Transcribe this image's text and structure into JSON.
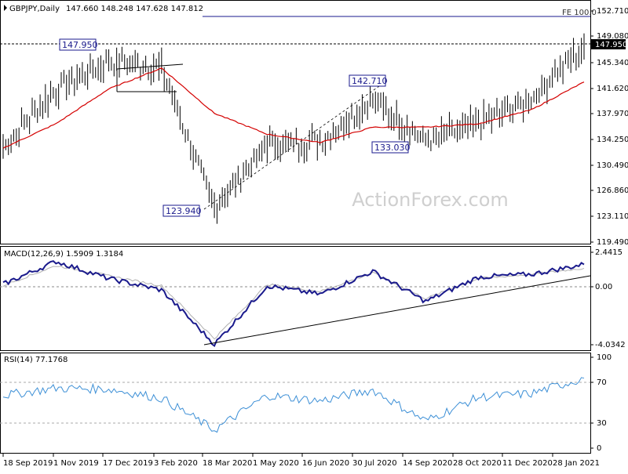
{
  "main": {
    "symbol": "GBPJPY,Daily",
    "ohlc": "147.660 148.248 147.628 147.812",
    "watermark": "ActionForex.com",
    "fe_label": "FE 100.0",
    "current_price_label": "147.950",
    "y_ticks": [
      "152.710",
      "149.080",
      "145.340",
      "141.620",
      "137.970",
      "134.250",
      "130.490",
      "126.860",
      "123.110",
      "119.490"
    ],
    "annotations": [
      "147.950",
      "142.710",
      "133.030",
      "123.940"
    ]
  },
  "macd": {
    "header": "MACD(12,26,9) 1.5909 1.3184",
    "y_ticks": [
      "2.4415",
      "0.00",
      "-4.0342"
    ]
  },
  "rsi": {
    "header": "RSI(14) 77.1768",
    "y_ticks": [
      "100",
      "70",
      "30",
      "0"
    ]
  },
  "x_ticks": [
    "18 Sep 2019",
    "1 Nov 2019",
    "17 Dec 2019",
    "3 Feb 2020",
    "18 Mar 2020",
    "1 May 2020",
    "16 Jun 2020",
    "30 Jul 2020",
    "14 Sep 2020",
    "28 Oct 2020",
    "11 Dec 2020",
    "28 Jan 2021"
  ],
  "colors": {
    "bars": "#000000",
    "ma": "#d40000",
    "macd": "#1a1a8c",
    "signal": "#b0b0b0",
    "rsi": "#3c8fd6",
    "label": "#1a1a8c",
    "watermark": "#cfcfcf"
  },
  "chart_data": [
    {
      "type": "bar",
      "title": "GBPJPY,Daily",
      "ylim": [
        119.49,
        152.71
      ],
      "x": [
        "18 Sep 2019",
        "1 Nov 2019",
        "17 Dec 2019",
        "3 Feb 2020",
        "18 Mar 2020",
        "1 May 2020",
        "16 Jun 2020",
        "30 Jul 2020",
        "14 Sep 2020",
        "28 Oct 2020",
        "11 Dec 2020",
        "28 Jan 2021"
      ],
      "series": [
        {
          "name": "price",
          "values": [
            133.0,
            141.5,
            145.5,
            144.5,
            124.5,
            133.5,
            134.0,
            139.8,
            134.0,
            136.5,
            140.0,
            147.8
          ]
        },
        {
          "values": [
            133.0,
            136.5,
            141.5,
            144.5,
            138.0,
            135.0,
            133.8,
            136.0,
            136.0,
            136.5,
            138.5,
            142.5
          ]
        }
      ],
      "key_levels": [
        147.95,
        142.71,
        133.03,
        123.94
      ],
      "fe_level": 152.1
    },
    {
      "type": "line",
      "title": "MACD(12,26,9) 1.5909 1.3184",
      "ylim": [
        -4.0342,
        2.4415
      ],
      "x": [
        "18 Sep 2019",
        "1 Nov 2019",
        "17 Dec 2019",
        "3 Feb 2020",
        "18 Mar 2020",
        "1 May 2020",
        "16 Jun 2020",
        "30 Jul 2020",
        "14 Sep 2020",
        "28 Oct 2020",
        "11 Dec 2020",
        "28 Jan 2021"
      ],
      "series": [
        {
          "name": "MACD",
          "values": [
            0.2,
            1.8,
            0.6,
            -0.2,
            -4.0,
            0.1,
            -0.5,
            1.1,
            -1.0,
            0.7,
            0.9,
            1.59
          ]
        },
        {
          "name": "Signal",
          "values": [
            0.1,
            1.5,
            0.8,
            0.1,
            -3.6,
            0.2,
            -0.3,
            1.0,
            -0.8,
            0.6,
            0.9,
            1.32
          ]
        }
      ]
    },
    {
      "type": "line",
      "title": "RSI(14) 77.1768",
      "ylim": [
        0,
        100
      ],
      "x": [
        "18 Sep 2019",
        "1 Nov 2019",
        "17 Dec 2019",
        "3 Feb 2020",
        "18 Mar 2020",
        "1 May 2020",
        "16 Jun 2020",
        "30 Jul 2020",
        "14 Sep 2020",
        "28 Oct 2020",
        "11 Dec 2020",
        "28 Jan 2021"
      ],
      "series": [
        {
          "name": "RSI",
          "values": [
            58,
            66,
            65,
            55,
            20,
            58,
            52,
            64,
            30,
            56,
            60,
            77
          ]
        }
      ],
      "levels": [
        70,
        30
      ]
    }
  ]
}
